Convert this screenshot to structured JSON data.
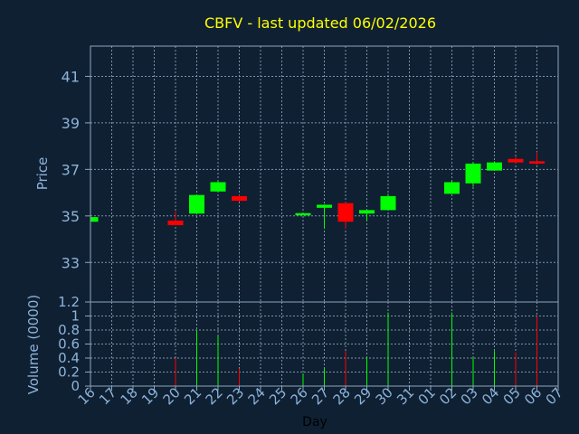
{
  "chart_data": {
    "type": "candlestick",
    "title": "CBFV - last updated 06/02/2026",
    "ylabel_price": "Price",
    "ylabel_volume": "Volume (0000)",
    "xlabel": "Day",
    "price_ylim": [
      31.3,
      42.3
    ],
    "price_yticks": [
      33,
      35,
      37,
      39,
      41
    ],
    "volume_ylim": [
      0,
      1.2
    ],
    "volume_yticks": [
      0,
      0.2,
      0.4,
      0.6,
      0.8,
      1,
      1.2
    ],
    "volume_ytick_labels": [
      "0",
      "0.2",
      "0.4",
      "0.6",
      "0.8",
      "1",
      "1.2"
    ],
    "x_labels": [
      "16",
      "17",
      "18",
      "19",
      "20",
      "21",
      "22",
      "23",
      "24",
      "25",
      "26",
      "27",
      "28",
      "29",
      "30",
      "31",
      "01",
      "02",
      "03",
      "04",
      "05",
      "06",
      "07"
    ],
    "up_color": "#00ff00",
    "down_color": "#ff0000",
    "grid": true,
    "candles": [
      {
        "day": "16",
        "open": 34.75,
        "close": 34.95,
        "high": 34.95,
        "low": 34.75,
        "volume": 0
      },
      {
        "day": "20",
        "open": 34.8,
        "close": 34.6,
        "high": 35.2,
        "low": 34.6,
        "volume": 0.4
      },
      {
        "day": "21",
        "open": 35.1,
        "close": 35.9,
        "high": 35.9,
        "low": 35.1,
        "volume": 0.8
      },
      {
        "day": "22",
        "open": 36.05,
        "close": 36.45,
        "high": 36.5,
        "low": 36.05,
        "volume": 0.72
      },
      {
        "day": "23",
        "open": 35.85,
        "close": 35.65,
        "high": 35.9,
        "low": 35.6,
        "volume": 0.25
      },
      {
        "day": "26",
        "open": 35.08,
        "close": 35.12,
        "high": 35.15,
        "low": 35.05,
        "volume": 0.18
      },
      {
        "day": "27",
        "open": 35.35,
        "close": 35.48,
        "high": 35.5,
        "low": 34.45,
        "volume": 0.25
      },
      {
        "day": "28",
        "open": 35.55,
        "close": 34.75,
        "high": 35.6,
        "low": 34.45,
        "volume": 0.5
      },
      {
        "day": "29",
        "open": 35.1,
        "close": 35.25,
        "high": 35.25,
        "low": 34.8,
        "volume": 0.42
      },
      {
        "day": "30",
        "open": 35.25,
        "close": 35.85,
        "high": 35.95,
        "low": 35.25,
        "volume": 1.05
      },
      {
        "day": "02",
        "open": 35.95,
        "close": 36.45,
        "high": 36.5,
        "low": 35.95,
        "volume": 1.05
      },
      {
        "day": "03",
        "open": 36.4,
        "close": 37.25,
        "high": 37.3,
        "low": 36.25,
        "volume": 0.42
      },
      {
        "day": "04",
        "open": 36.95,
        "close": 37.3,
        "high": 37.35,
        "low": 36.95,
        "volume": 0.5
      },
      {
        "day": "05",
        "open": 37.45,
        "close": 37.3,
        "high": 37.55,
        "low": 37.25,
        "volume": 0.48
      },
      {
        "day": "06",
        "open": 37.35,
        "close": 37.25,
        "high": 37.75,
        "low": 37.2,
        "volume": 1.0
      }
    ]
  }
}
